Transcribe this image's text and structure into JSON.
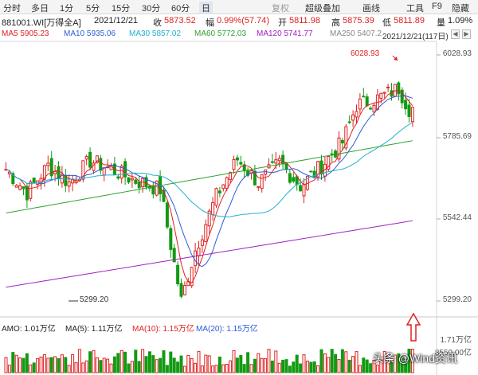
{
  "toolbar": {
    "items": [
      "分时",
      "多日",
      "1分",
      "5分",
      "15分",
      "30分",
      "60分",
      "日"
    ],
    "right_items": [
      "复权",
      "超级叠加",
      "画线",
      "工具",
      "F9",
      "隐藏"
    ],
    "active_index": 7
  },
  "quote": {
    "code": "881001.WI[万得全A]",
    "date": "2021/12/21",
    "close_label": "收",
    "close": "5873.52",
    "change_label": "幅",
    "change": "0.99%(57.74)",
    "open_label": "开",
    "open": "5811.98",
    "high_label": "高",
    "high": "5875.39",
    "low_label": "低",
    "low": "5811.89",
    "volume_ratio_label": "量",
    "volume_ratio": "1.09%"
  },
  "ma": {
    "ma5": "MA5  5905.23",
    "ma10": "MA10  5935.06",
    "ma30": "MA30  5857.02",
    "ma60": "MA60  5772.03",
    "ma120": "MA120  5741.77",
    "ma250": "MA250  5407.21",
    "date_badge": "2021/12/21(117日)"
  },
  "price_axis": {
    "top": "6028.93",
    "mid1": "5785.69",
    "mid2": "5542.44",
    "bottom": "5299.20"
  },
  "annotations": {
    "peak": "6028.93",
    "low": "5299.20"
  },
  "volume": {
    "amo": "AMO: 1.01万亿",
    "ma5": "MA(5): 1.11万亿",
    "ma10": "MA(10): 1.15万亿",
    "ma20": "MA(20): 1.15万亿",
    "axis_top": "1.71万亿",
    "axis_bottom": "8550.00亿"
  },
  "watermark": "头条 @Wind资讯",
  "colors": {
    "up": "#e02020",
    "down": "#139a13",
    "ma5": "#e02020",
    "ma10": "#2a5bd7",
    "ma30": "#20b0d0",
    "ma60": "#30a030",
    "ma120": "#a020c0",
    "ma250": "#a0a0a0"
  }
}
